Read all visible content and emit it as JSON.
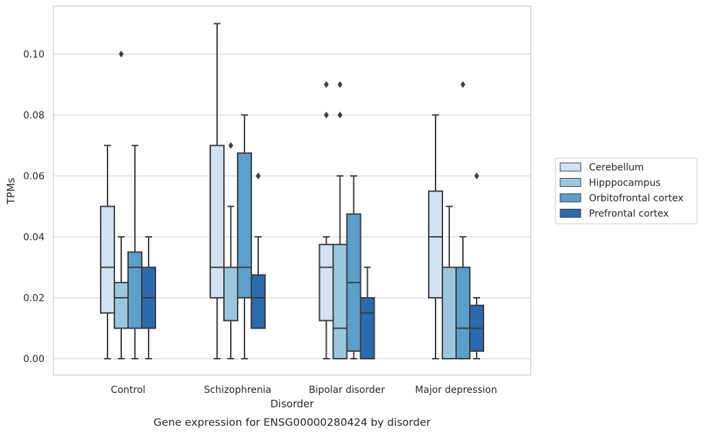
{
  "chart_data": {
    "type": "box",
    "title": "Gene expression for ENSG00000280424 by disorder",
    "xlabel": "Disorder",
    "ylabel": "TPMs",
    "ylim": [
      -0.005,
      0.116
    ],
    "yticks": [
      0.0,
      0.02,
      0.04,
      0.06,
      0.08,
      0.1
    ],
    "ytick_labels": [
      "0.00",
      "0.02",
      "0.04",
      "0.06",
      "0.08",
      "0.10"
    ],
    "grid": "horizontal",
    "legend_position": "right",
    "categories": [
      "Control",
      "Schizophrenia",
      "Bipolar disorder",
      "Major depression"
    ],
    "series": [
      {
        "name": "Cerebellum",
        "color": "#d1e2f2",
        "boxes": [
          {
            "whisker_low": 0.0,
            "q1": 0.015,
            "median": 0.03,
            "q3": 0.05,
            "whisker_high": 0.07,
            "outliers": []
          },
          {
            "whisker_low": 0.0,
            "q1": 0.02,
            "median": 0.03,
            "q3": 0.07,
            "whisker_high": 0.11,
            "outliers": []
          },
          {
            "whisker_low": 0.0,
            "q1": 0.0125,
            "median": 0.03,
            "q3": 0.0375,
            "whisker_high": 0.04,
            "outliers": [
              0.08,
              0.09
            ]
          },
          {
            "whisker_low": 0.0,
            "q1": 0.02,
            "median": 0.04,
            "q3": 0.055,
            "whisker_high": 0.08,
            "outliers": []
          }
        ]
      },
      {
        "name": "Hipppocampus",
        "color": "#9ac7e0",
        "boxes": [
          {
            "whisker_low": 0.0,
            "q1": 0.01,
            "median": 0.02,
            "q3": 0.025,
            "whisker_high": 0.04,
            "outliers": [
              0.1
            ]
          },
          {
            "whisker_low": 0.0,
            "q1": 0.0125,
            "median": 0.03,
            "q3": 0.03,
            "whisker_high": 0.05,
            "outliers": [
              0.07
            ]
          },
          {
            "whisker_low": 0.0,
            "q1": 0.0,
            "median": 0.01,
            "q3": 0.0375,
            "whisker_high": 0.06,
            "outliers": [
              0.08,
              0.09
            ]
          },
          {
            "whisker_low": 0.0,
            "q1": 0.0,
            "median": 0.03,
            "q3": 0.03,
            "whisker_high": 0.05,
            "outliers": []
          }
        ]
      },
      {
        "name": "Orbitofrontal cortex",
        "color": "#5b9fcb",
        "boxes": [
          {
            "whisker_low": 0.0,
            "q1": 0.01,
            "median": 0.03,
            "q3": 0.035,
            "whisker_high": 0.07,
            "outliers": []
          },
          {
            "whisker_low": 0.0,
            "q1": 0.02,
            "median": 0.03,
            "q3": 0.0675,
            "whisker_high": 0.08,
            "outliers": []
          },
          {
            "whisker_low": 0.0,
            "q1": 0.0025,
            "median": 0.025,
            "q3": 0.0475,
            "whisker_high": 0.06,
            "outliers": []
          },
          {
            "whisker_low": 0.0,
            "q1": 0.0,
            "median": 0.01,
            "q3": 0.03,
            "whisker_high": 0.04,
            "outliers": [
              0.09
            ]
          }
        ]
      },
      {
        "name": "Prefrontal cortex",
        "color": "#2a6aad",
        "boxes": [
          {
            "whisker_low": 0.0,
            "q1": 0.01,
            "median": 0.02,
            "q3": 0.03,
            "whisker_high": 0.04,
            "outliers": []
          },
          {
            "whisker_low": 0.01,
            "q1": 0.01,
            "median": 0.02,
            "q3": 0.0275,
            "whisker_high": 0.04,
            "outliers": [
              0.06
            ]
          },
          {
            "whisker_low": 0.0,
            "q1": 0.0,
            "median": 0.015,
            "q3": 0.02,
            "whisker_high": 0.03,
            "outliers": []
          },
          {
            "whisker_low": 0.0,
            "q1": 0.0025,
            "median": 0.01,
            "q3": 0.0175,
            "whisker_high": 0.02,
            "outliers": [
              0.06
            ]
          }
        ]
      }
    ]
  }
}
